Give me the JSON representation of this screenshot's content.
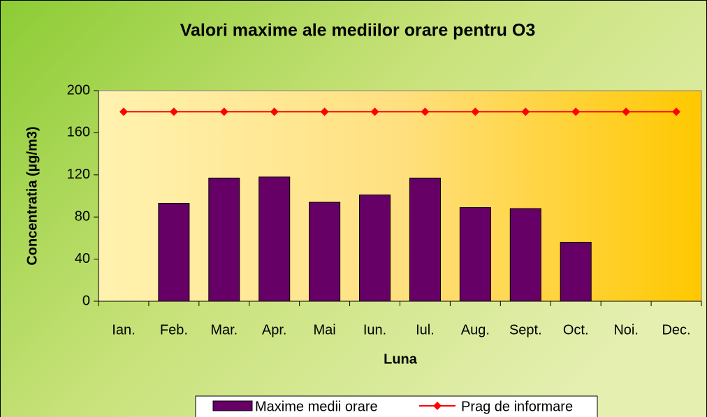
{
  "chart_data": {
    "type": "bar",
    "title": "Valori maxime ale mediilor orare pentru O3",
    "x_label": "Luna",
    "y_label": "Concentratia  (µg/m3)",
    "categories": [
      "Ian.",
      "Feb.",
      "Mar.",
      "Apr.",
      "Mai",
      "Iun.",
      "Iul.",
      "Aug.",
      "Sept.",
      "Oct.",
      "Noi.",
      "Dec."
    ],
    "series": [
      {
        "name": "Maxime medii orare",
        "type": "bar",
        "color": "#660066",
        "values": [
          null,
          93,
          117,
          118,
          94,
          101,
          117,
          89,
          88,
          56,
          null,
          null
        ]
      },
      {
        "name": "Prag de informare",
        "type": "line",
        "color": "#ff0000",
        "values": [
          180,
          180,
          180,
          180,
          180,
          180,
          180,
          180,
          180,
          180,
          180,
          180
        ]
      }
    ],
    "ylim": [
      0,
      200
    ],
    "yticks": [
      0,
      40,
      80,
      120,
      160,
      200
    ],
    "legend": "bottom"
  }
}
